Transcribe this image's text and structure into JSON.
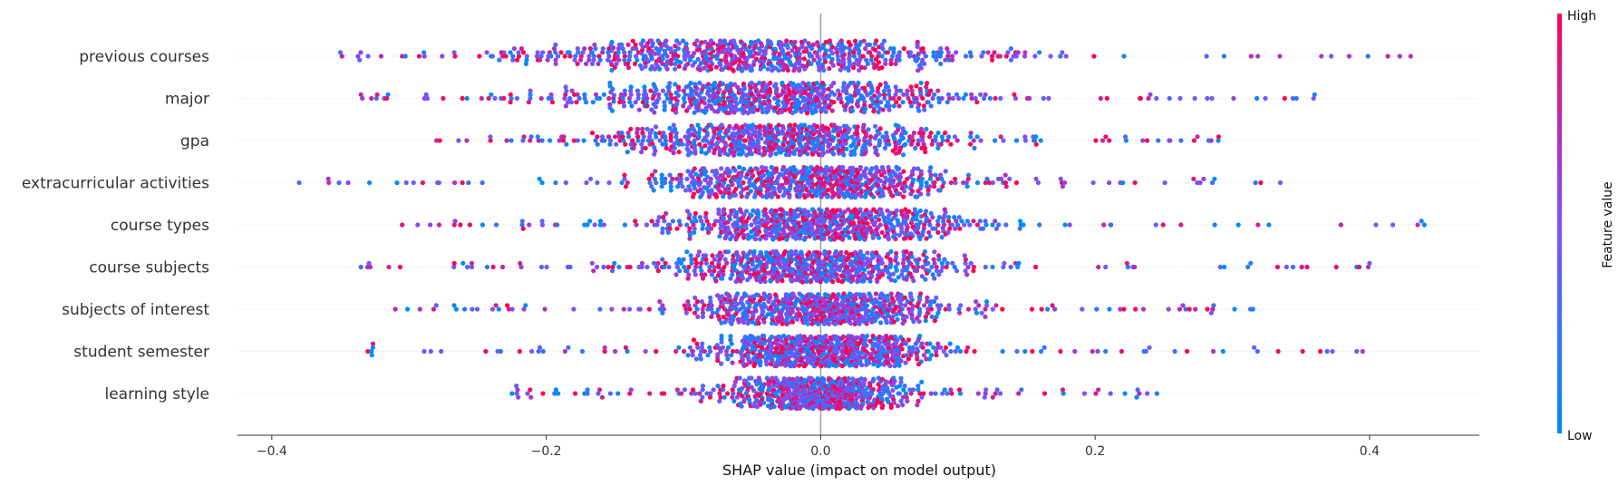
{
  "chart_data": {
    "type": "scatter",
    "subtype": "shap-beeswarm",
    "title": "",
    "xlabel": "SHAP value (impact on model output)",
    "ylabel": "",
    "xlim": [
      -0.425,
      0.48
    ],
    "xticks": [
      -0.4,
      -0.2,
      0.0,
      0.2,
      0.4
    ],
    "xtick_labels": [
      "−0.4",
      "−0.2",
      "0.0",
      "0.2",
      "0.4"
    ],
    "features": [
      {
        "name": "previous courses",
        "min": -0.35,
        "max": 0.43,
        "spread": 0.11,
        "peak": -0.05
      },
      {
        "name": "major",
        "min": -0.335,
        "max": 0.36,
        "spread": 0.09,
        "peak": -0.035
      },
      {
        "name": "gpa",
        "min": -0.28,
        "max": 0.29,
        "spread": 0.085,
        "peak": -0.025
      },
      {
        "name": "extracurricular activities",
        "min": -0.38,
        "max": 0.335,
        "spread": 0.075,
        "peak": -0.01
      },
      {
        "name": "course types",
        "min": -0.305,
        "max": 0.44,
        "spread": 0.07,
        "peak": 0.0
      },
      {
        "name": "course subjects",
        "min": -0.335,
        "max": 0.4,
        "spread": 0.07,
        "peak": -0.005
      },
      {
        "name": "subjects of interest",
        "min": -0.31,
        "max": 0.315,
        "spread": 0.065,
        "peak": 0.0
      },
      {
        "name": "student semester",
        "min": -0.33,
        "max": 0.395,
        "spread": 0.055,
        "peak": 0.0
      },
      {
        "name": "learning style",
        "min": -0.225,
        "max": 0.245,
        "spread": 0.045,
        "peak": 0.0
      }
    ],
    "colorbar": {
      "label": "Feature value",
      "high_label": "High",
      "low_label": "Low",
      "high_color": "#ff0052",
      "low_color": "#008bfb"
    },
    "grid": false,
    "legend": "colorbar-right"
  }
}
